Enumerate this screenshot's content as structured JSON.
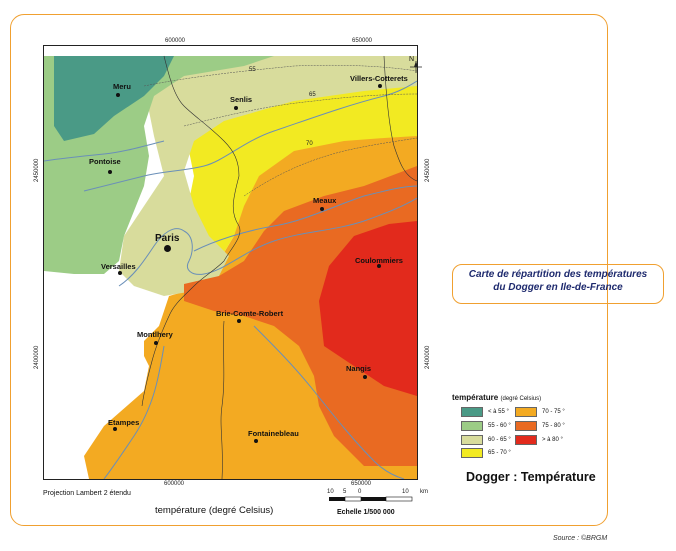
{
  "coordinates": {
    "x_left": "600000",
    "x_right": "650000",
    "y_upper": "2450000",
    "y_lower": "2400000"
  },
  "cities": [
    {
      "name": "Meru"
    },
    {
      "name": "Senlis"
    },
    {
      "name": "Villers-Cotterets"
    },
    {
      "name": "Pontoise"
    },
    {
      "name": "Meaux"
    },
    {
      "name": "Paris"
    },
    {
      "name": "Coulommiers"
    },
    {
      "name": "Versailles"
    },
    {
      "name": "Brie-Comte-Robert"
    },
    {
      "name": "Montlhery"
    },
    {
      "name": "Nangis"
    },
    {
      "name": "Etampes"
    },
    {
      "name": "Fontainebleau"
    }
  ],
  "contours": [
    "55",
    "65",
    "70"
  ],
  "caption": {
    "line1": "Carte de répartition des températures",
    "line2": "du Dogger en Ile-de-France"
  },
  "legend": {
    "title": "température",
    "unit": "(degré Celsius)",
    "items": [
      {
        "label": "< à 55 °",
        "color": "#4a9a86"
      },
      {
        "label": "55 - 60 °",
        "color": "#9ccc86"
      },
      {
        "label": "60 - 65 °",
        "color": "#d8dc9c"
      },
      {
        "label": "65 - 70 °",
        "color": "#f2ea22"
      },
      {
        "label": "70 - 75 °",
        "color": "#f3aa22"
      },
      {
        "label": "75 - 80 °",
        "color": "#e96a22"
      },
      {
        "label": "> à 80 °",
        "color": "#e22a1c"
      }
    ]
  },
  "heading": "Dogger :  Température",
  "projection": "Projection Lambert 2 étendu",
  "temperature_label": "température (degré Celsius)",
  "scale": {
    "label": "Echelle 1/500 000",
    "ticks": [
      "10",
      "5",
      "0",
      "10"
    ],
    "unit": "km"
  },
  "source": "Source : ©BRGM",
  "compass": "N"
}
